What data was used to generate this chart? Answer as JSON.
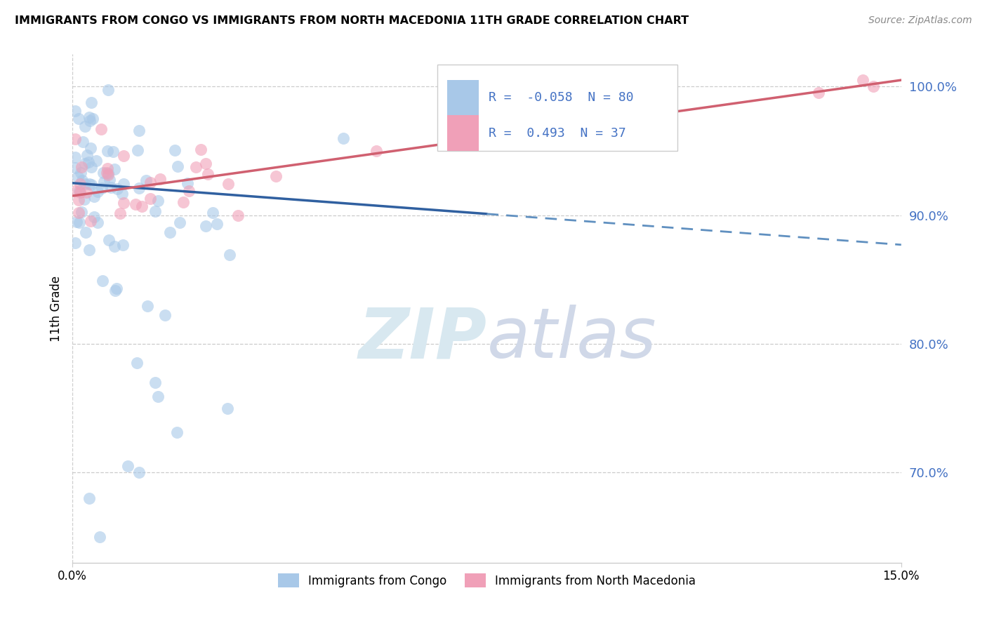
{
  "title": "IMMIGRANTS FROM CONGO VS IMMIGRANTS FROM NORTH MACEDONIA 11TH GRADE CORRELATION CHART",
  "source": "Source: ZipAtlas.com",
  "ylabel": "11th Grade",
  "xlim": [
    0.0,
    15.0
  ],
  "ylim": [
    63.0,
    102.5
  ],
  "yticks": [
    70.0,
    80.0,
    90.0,
    100.0
  ],
  "ytick_labels": [
    "70.0%",
    "80.0%",
    "90.0%",
    "100.0%"
  ],
  "congo_color": "#a8c8e8",
  "macedonia_color": "#f0a0b8",
  "congo_line_color": "#3060a0",
  "congo_dash_color": "#6090c0",
  "macedonia_line_color": "#d06070",
  "congo_R": -0.058,
  "congo_N": 80,
  "macedonia_R": 0.493,
  "macedonia_N": 37,
  "legend_label_congo": "Immigrants from Congo",
  "legend_label_macedonia": "Immigrants from North Macedonia",
  "watermark_zip": "ZIP",
  "watermark_atlas": "atlas",
  "congo_solid_end_x": 7.5,
  "congo_line_intercept": 92.5,
  "congo_line_slope": -0.32,
  "mac_line_intercept": 91.5,
  "mac_line_slope": 0.6
}
